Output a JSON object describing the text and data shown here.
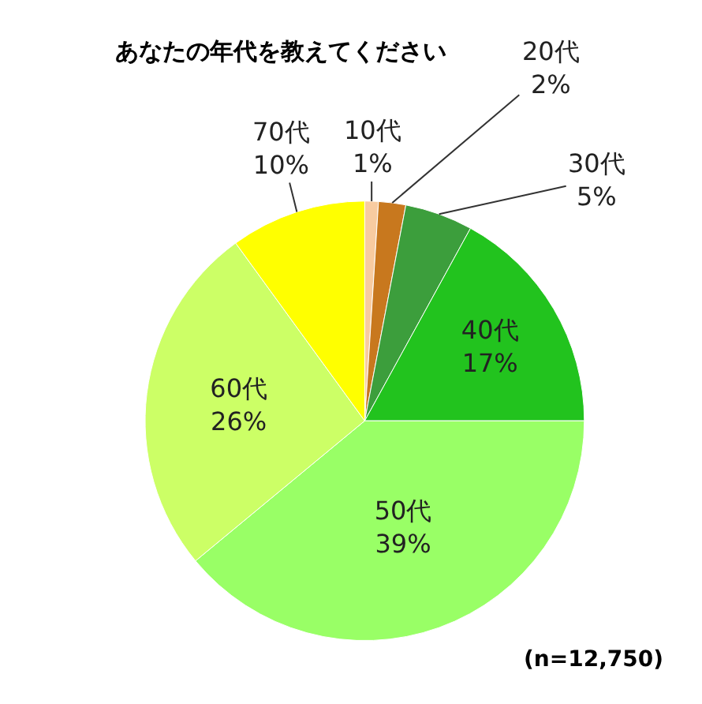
{
  "chart_data": {
    "type": "pie",
    "title": "あなたの年代を教えてください",
    "categories": [
      "10代",
      "20代",
      "30代",
      "40代",
      "50代",
      "60代",
      "70代"
    ],
    "values": [
      1,
      2,
      5,
      17,
      39,
      26,
      10
    ],
    "value_labels": [
      "1%",
      "2%",
      "5%",
      "17%",
      "39%",
      "26%",
      "10%"
    ],
    "colors": [
      "#f8cba0",
      "#c8781e",
      "#3c9e3c",
      "#22c31e",
      "#99ff66",
      "#ccff66",
      "#ffff00"
    ],
    "annotations": [
      "(n=12,750)"
    ],
    "legend": false
  }
}
